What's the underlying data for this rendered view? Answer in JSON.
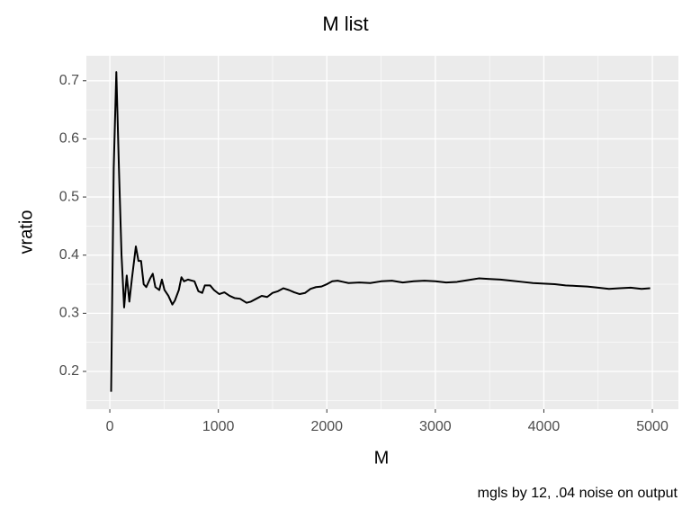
{
  "chart_data": {
    "type": "line",
    "title": "M list",
    "x_label": "M",
    "y_label": "vratio",
    "caption": "mgls by 12, .04 noise on output",
    "x": [
      12,
      36,
      60,
      84,
      108,
      132,
      156,
      180,
      204,
      240,
      264,
      288,
      312,
      336,
      372,
      396,
      420,
      456,
      480,
      504,
      540,
      576,
      600,
      636,
      660,
      684,
      720,
      780,
      816,
      852,
      876,
      924,
      960,
      1008,
      1056,
      1104,
      1152,
      1200,
      1260,
      1300,
      1350,
      1400,
      1450,
      1500,
      1550,
      1600,
      1650,
      1700,
      1750,
      1800,
      1850,
      1900,
      1950,
      2000,
      2050,
      2100,
      2150,
      2200,
      2300,
      2400,
      2500,
      2600,
      2700,
      2800,
      2900,
      3000,
      3100,
      3200,
      3300,
      3400,
      3500,
      3600,
      3700,
      3800,
      3900,
      4000,
      4100,
      4200,
      4300,
      4400,
      4500,
      4600,
      4700,
      4800,
      4900,
      4980
    ],
    "series": [
      {
        "name": "vratio",
        "color": "#000000",
        "values": [
          0.165,
          0.55,
          0.715,
          0.55,
          0.4,
          0.31,
          0.365,
          0.32,
          0.36,
          0.415,
          0.39,
          0.39,
          0.35,
          0.345,
          0.36,
          0.368,
          0.345,
          0.34,
          0.358,
          0.34,
          0.33,
          0.315,
          0.322,
          0.34,
          0.362,
          0.355,
          0.358,
          0.355,
          0.338,
          0.335,
          0.348,
          0.348,
          0.34,
          0.333,
          0.336,
          0.33,
          0.326,
          0.325,
          0.318,
          0.32,
          0.325,
          0.33,
          0.328,
          0.335,
          0.338,
          0.343,
          0.34,
          0.336,
          0.333,
          0.335,
          0.342,
          0.345,
          0.346,
          0.35,
          0.355,
          0.356,
          0.354,
          0.352,
          0.353,
          0.352,
          0.355,
          0.356,
          0.353,
          0.355,
          0.356,
          0.355,
          0.353,
          0.354,
          0.357,
          0.36,
          0.359,
          0.358,
          0.356,
          0.354,
          0.352,
          0.351,
          0.35,
          0.348,
          0.347,
          0.346,
          0.344,
          0.342,
          0.343,
          0.344,
          0.342,
          0.343
        ]
      }
    ],
    "xlim": [
      -216,
      5240
    ],
    "ylim": [
      0.135,
      0.743
    ],
    "xticks": [
      0,
      1000,
      2000,
      3000,
      4000,
      5000
    ],
    "yticks": [
      0.2,
      0.3,
      0.4,
      0.5,
      0.6,
      0.7
    ],
    "grid": true,
    "minor_grid": true,
    "panel_color": "#EBEBEB"
  }
}
